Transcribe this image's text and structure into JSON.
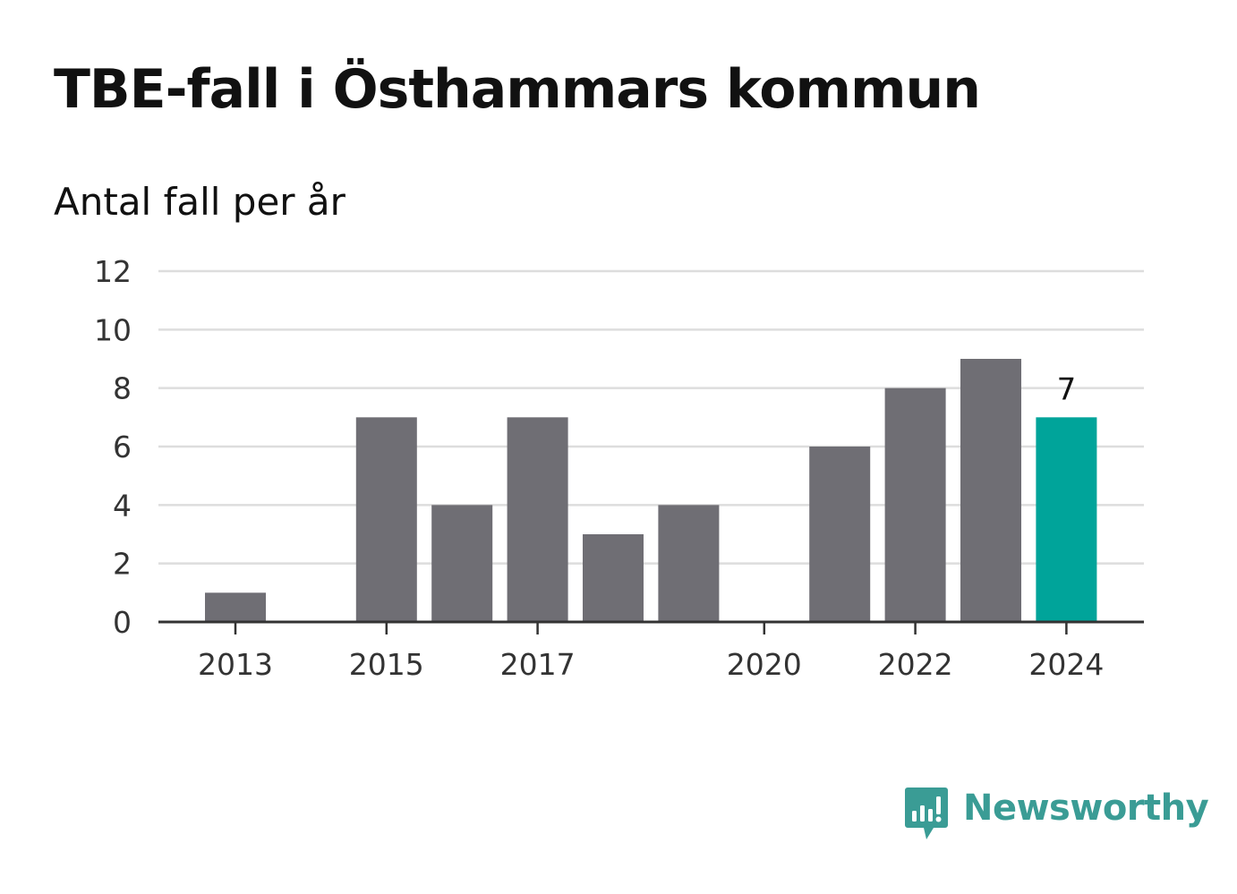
{
  "title": "TBE-fall i Östhammars kommun",
  "subtitle": "Antal fall per år",
  "brand": {
    "name": "Newsworthy",
    "color": "#3a9c95",
    "icon": "newsworthy-chat-chart-icon"
  },
  "chart_data": {
    "type": "bar",
    "categories": [
      "2013",
      "2014",
      "2015",
      "2016",
      "2017",
      "2018",
      "2019",
      "2020",
      "2021",
      "2022",
      "2023",
      "2024"
    ],
    "values": [
      1,
      0,
      7,
      4,
      7,
      3,
      4,
      0,
      6,
      8,
      9,
      7
    ],
    "x_tick_labels": [
      "2013",
      "2015",
      "2017",
      "2020",
      "2022",
      "2024"
    ],
    "y_ticks": [
      "0",
      "2",
      "4",
      "6",
      "8",
      "10",
      "12"
    ],
    "ylim": [
      0,
      12
    ],
    "grid": true,
    "highlight": {
      "category": "2024",
      "label": "7",
      "color": "#00a49a"
    },
    "bar_color": "#6f6e74",
    "gridline_color": "#dddddd",
    "axis_color": "#333333"
  }
}
